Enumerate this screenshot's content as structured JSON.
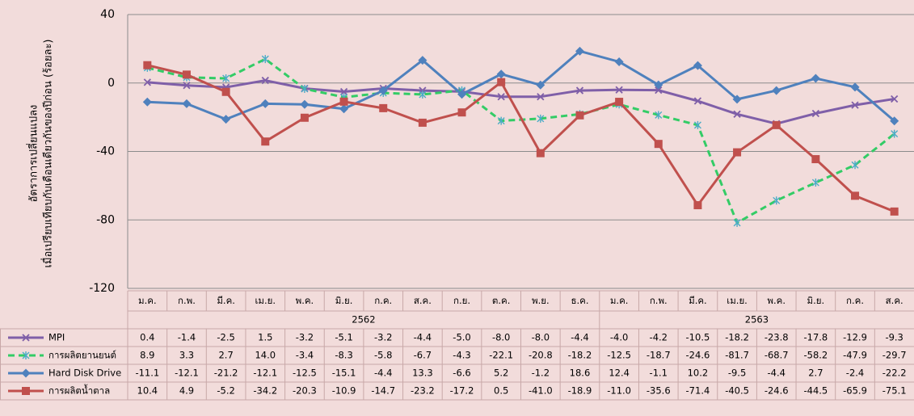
{
  "chart_data": {
    "type": "line",
    "y_label": [
      "อัตราการเปลี่ยนแปลง",
      "เมื่อเปรียบเทียบกับเดือนเดียวกันของปีก่อน  (ร้อยละ)"
    ],
    "categories": [
      "ม.ค.",
      "ก.พ.",
      "มี.ค.",
      "เม.ย.",
      "พ.ค.",
      "มิ.ย.",
      "ก.ค.",
      "ส.ค.",
      "ก.ย.",
      "ต.ค.",
      "พ.ย.",
      "ธ.ค.",
      "ม.ค.",
      "ก.พ.",
      "มี.ค.",
      "เม.ย.",
      "พ.ค.",
      "มิ.ย.",
      "ก.ค.",
      "ส.ค."
    ],
    "years": [
      "2562",
      "2563"
    ],
    "ylim": [
      -120,
      40
    ],
    "yticks": [
      40,
      0,
      -40,
      -80,
      -120
    ],
    "grid": true,
    "series": [
      {
        "name": "MPI",
        "color": "#7f5fa8",
        "marker": "cross",
        "dashed": false,
        "values": [
          0.4,
          -1.4,
          -2.5,
          1.5,
          -3.2,
          -5.1,
          -3.2,
          -4.4,
          -5.0,
          -8.0,
          -8.0,
          -4.4,
          -4.0,
          -4.2,
          -10.5,
          -18.2,
          -23.8,
          -17.8,
          -12.9,
          -9.3
        ],
        "value_labels": [
          "0.4",
          "-1.4",
          "-2.5",
          "1.5",
          "-3.2",
          "-5.1",
          "-3.2",
          "-4.4",
          "-5.0",
          "-8.0",
          "-8.0",
          "-4.4",
          "-4.0",
          "-4.2",
          "-10.5",
          "-18.2",
          "-23.8",
          "-17.8",
          "-12.9",
          "-9.3"
        ]
      },
      {
        "name": "การผลิตยานยนต์",
        "color": "#33cc66",
        "marker": "asterisk",
        "dashed": true,
        "values": [
          8.9,
          3.3,
          2.7,
          14.0,
          -3.4,
          -8.3,
          -5.8,
          -6.7,
          -4.3,
          -22.1,
          -20.8,
          -18.2,
          -12.5,
          -18.7,
          -24.6,
          -81.7,
          -68.7,
          -58.2,
          -47.9,
          -29.7
        ],
        "value_labels": [
          "8.9",
          "3.3",
          "2.7",
          "14.0",
          "-3.4",
          "-8.3",
          "-5.8",
          "-6.7",
          "-4.3",
          "-22.1",
          "-20.8",
          "-18.2",
          "-12.5",
          "-18.7",
          "-24.6",
          "-81.7",
          "-68.7",
          "-58.2",
          "-47.9",
          "-29.7"
        ]
      },
      {
        "name": "Hard Disk Drive",
        "color": "#4f81bd",
        "marker": "diamond",
        "dashed": false,
        "values": [
          -11.1,
          -12.1,
          -21.2,
          -12.1,
          -12.5,
          -15.1,
          -4.4,
          13.3,
          -6.6,
          5.2,
          -1.2,
          18.6,
          12.4,
          -1.1,
          10.2,
          -9.5,
          -4.4,
          2.7,
          -2.4,
          -22.2
        ],
        "value_labels": [
          "-11.1",
          "-12.1",
          "-21.2",
          "-12.1",
          "-12.5",
          "-15.1",
          "-4.4",
          "13.3",
          "-6.6",
          "5.2",
          "-1.2",
          "18.6",
          "12.4",
          "-1.1",
          "10.2",
          "-9.5",
          "-4.4",
          "2.7",
          "-2.4",
          "-22.2"
        ]
      },
      {
        "name": "การผลิตน้ำตาล",
        "color": "#c0504d",
        "marker": "square",
        "dashed": false,
        "values": [
          10.4,
          4.9,
          -5.2,
          -34.2,
          -20.3,
          -10.9,
          -14.7,
          -23.2,
          -17.2,
          0.5,
          -41.0,
          -18.9,
          -11.0,
          -35.6,
          -71.4,
          -40.5,
          -24.6,
          -44.5,
          -65.9,
          -75.1
        ],
        "value_labels": [
          "10.4",
          "4.9",
          "-5.2",
          "-34.2",
          "-20.3",
          "-10.9",
          "-14.7",
          "-23.2",
          "-17.2",
          "0.5",
          "-41.0",
          "-18.9",
          "-11.0",
          "-35.6",
          "-71.4",
          "-40.5",
          "-24.6",
          "-44.5",
          "-65.9",
          "-75.1"
        ]
      }
    ]
  }
}
